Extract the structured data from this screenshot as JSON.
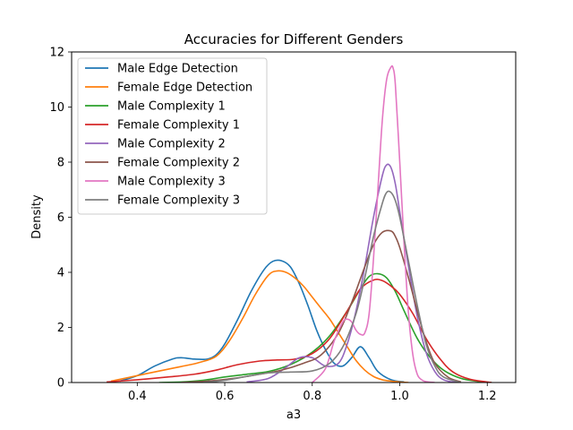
{
  "chart_data": {
    "type": "line",
    "title": "Accuracies for Different Genders",
    "xlabel": "a3",
    "ylabel": "Density",
    "xlim": [
      0.25,
      1.265
    ],
    "ylim": [
      0,
      12
    ],
    "xticks": [
      0.4,
      0.6,
      0.8,
      1.0,
      1.2
    ],
    "yticks": [
      0,
      2,
      4,
      6,
      8,
      10,
      12
    ],
    "grid": false,
    "legend_position": "top-left",
    "series": [
      {
        "name": "Male Edge Detection",
        "color": "#1f77b4",
        "x": [
          0.36,
          0.4,
          0.44,
          0.48,
          0.5,
          0.53,
          0.56,
          0.58,
          0.6,
          0.63,
          0.66,
          0.69,
          0.71,
          0.73,
          0.75,
          0.77,
          0.79,
          0.81,
          0.83,
          0.85,
          0.87,
          0.89,
          0.91,
          0.93,
          0.95,
          0.98,
          1.01
        ],
        "y": [
          0.05,
          0.25,
          0.6,
          0.85,
          0.9,
          0.85,
          0.85,
          1.0,
          1.4,
          2.3,
          3.3,
          4.1,
          4.4,
          4.42,
          4.2,
          3.6,
          2.8,
          1.9,
          1.2,
          0.7,
          0.6,
          0.9,
          1.3,
          0.9,
          0.4,
          0.1,
          0.02
        ]
      },
      {
        "name": "Female Edge Detection",
        "color": "#ff7f0e",
        "x": [
          0.34,
          0.38,
          0.42,
          0.46,
          0.5,
          0.54,
          0.58,
          0.61,
          0.64,
          0.67,
          0.7,
          0.72,
          0.74,
          0.76,
          0.78,
          0.8,
          0.82,
          0.84,
          0.86,
          0.88,
          0.9,
          0.92,
          0.94,
          0.96,
          0.98,
          1.0,
          1.02
        ],
        "y": [
          0.05,
          0.18,
          0.32,
          0.45,
          0.58,
          0.72,
          0.95,
          1.5,
          2.3,
          3.2,
          3.9,
          4.05,
          4.0,
          3.8,
          3.5,
          3.1,
          2.7,
          2.3,
          1.8,
          1.3,
          0.8,
          0.45,
          0.22,
          0.1,
          0.05,
          0.02,
          0.0
        ]
      },
      {
        "name": "Male Complexity 1",
        "color": "#2ca02c",
        "x": [
          0.45,
          0.5,
          0.55,
          0.6,
          0.65,
          0.7,
          0.75,
          0.8,
          0.84,
          0.88,
          0.91,
          0.93,
          0.95,
          0.97,
          0.99,
          1.01,
          1.04,
          1.07,
          1.1,
          1.14,
          1.18,
          1.21
        ],
        "y": [
          0.0,
          0.02,
          0.08,
          0.2,
          0.3,
          0.4,
          0.65,
          1.1,
          1.7,
          2.6,
          3.4,
          3.85,
          3.95,
          3.8,
          3.3,
          2.6,
          1.6,
          0.9,
          0.45,
          0.15,
          0.04,
          0.0
        ]
      },
      {
        "name": "Female Complexity 1",
        "color": "#d62728",
        "x": [
          0.33,
          0.4,
          0.47,
          0.53,
          0.58,
          0.63,
          0.68,
          0.72,
          0.76,
          0.8,
          0.84,
          0.88,
          0.91,
          0.94,
          0.96,
          0.98,
          1.0,
          1.03,
          1.06,
          1.09,
          1.12,
          1.16,
          1.21
        ],
        "y": [
          0.02,
          0.1,
          0.2,
          0.3,
          0.45,
          0.65,
          0.78,
          0.82,
          0.85,
          1.05,
          1.6,
          2.6,
          3.4,
          3.72,
          3.7,
          3.5,
          3.2,
          2.5,
          1.6,
          0.9,
          0.4,
          0.12,
          0.0
        ]
      },
      {
        "name": "Male Complexity 2",
        "color": "#9467bd",
        "x": [
          0.65,
          0.7,
          0.74,
          0.77,
          0.8,
          0.83,
          0.86,
          0.88,
          0.9,
          0.92,
          0.94,
          0.96,
          0.97,
          0.98,
          0.99,
          1.0,
          1.02,
          1.04,
          1.06,
          1.08,
          1.1,
          1.13
        ],
        "y": [
          0.02,
          0.15,
          0.55,
          0.9,
          0.9,
          0.6,
          0.7,
          1.4,
          2.6,
          4.2,
          6.0,
          7.5,
          7.9,
          7.8,
          7.2,
          6.2,
          4.2,
          2.4,
          1.1,
          0.4,
          0.1,
          0.0
        ]
      },
      {
        "name": "Female Complexity 2",
        "color": "#8c564b",
        "x": [
          0.5,
          0.56,
          0.62,
          0.68,
          0.73,
          0.78,
          0.82,
          0.86,
          0.89,
          0.92,
          0.94,
          0.96,
          0.98,
          0.99,
          1.0,
          1.02,
          1.04,
          1.06,
          1.08,
          1.11,
          1.14
        ],
        "y": [
          0.0,
          0.05,
          0.15,
          0.3,
          0.45,
          0.7,
          1.0,
          1.8,
          2.9,
          4.2,
          5.0,
          5.45,
          5.5,
          5.3,
          4.9,
          3.8,
          2.6,
          1.5,
          0.7,
          0.2,
          0.02
        ]
      },
      {
        "name": "Male Complexity 3",
        "color": "#e377c2",
        "x": [
          0.8,
          0.83,
          0.85,
          0.87,
          0.88,
          0.89,
          0.9,
          0.91,
          0.92,
          0.93,
          0.94,
          0.95,
          0.96,
          0.97,
          0.98,
          0.985,
          0.99,
          1.0,
          1.01,
          1.02,
          1.03,
          1.04,
          1.05,
          1.06,
          1.08
        ],
        "y": [
          0.0,
          0.5,
          1.5,
          2.2,
          2.3,
          2.2,
          1.9,
          1.75,
          1.8,
          2.5,
          4.5,
          7.0,
          9.5,
          11.0,
          11.45,
          11.4,
          10.8,
          8.0,
          5.0,
          2.5,
          1.0,
          0.3,
          0.1,
          0.03,
          0.0
        ]
      },
      {
        "name": "Female Complexity 3",
        "color": "#7f7f7f",
        "x": [
          0.55,
          0.6,
          0.65,
          0.7,
          0.75,
          0.8,
          0.84,
          0.87,
          0.9,
          0.92,
          0.94,
          0.96,
          0.97,
          0.98,
          0.99,
          1.0,
          1.02,
          1.04,
          1.06,
          1.08,
          1.1,
          1.14
        ],
        "y": [
          0.0,
          0.08,
          0.22,
          0.35,
          0.38,
          0.42,
          0.7,
          1.3,
          2.5,
          3.8,
          5.3,
          6.5,
          6.9,
          6.9,
          6.6,
          6.0,
          4.4,
          2.8,
          1.4,
          0.6,
          0.2,
          0.0
        ]
      }
    ]
  }
}
